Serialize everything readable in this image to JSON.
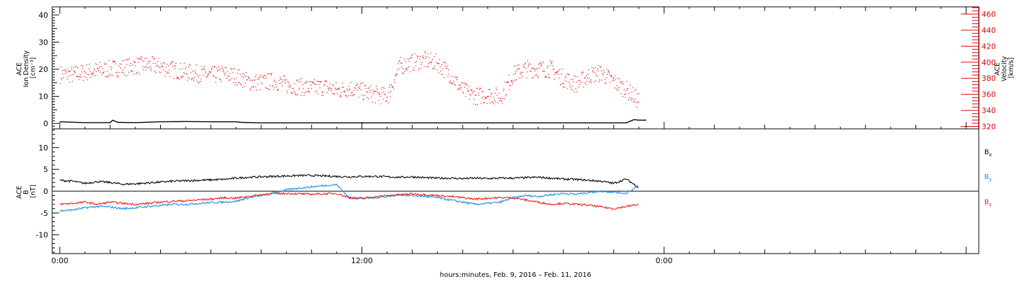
{
  "chart_data": [
    {
      "type": "scatter",
      "panel": "top",
      "ylabel_lines": [
        "ACE",
        "Ion Density",
        "[cm⁻³]"
      ],
      "ylim": [
        -2,
        43
      ],
      "yticks": [
        0,
        10,
        20,
        30,
        40
      ],
      "y2label_lines": [
        "ACE",
        "Velocity",
        "[km/s]"
      ],
      "y2lim": [
        317,
        469
      ],
      "y2ticks": [
        320,
        340,
        360,
        380,
        400,
        420,
        440,
        460
      ],
      "xlim_hours": [
        -0.3,
        36.5
      ],
      "series": [
        {
          "axis": "left",
          "color": "#000000",
          "x": [
            0,
            1,
            2,
            2.1,
            2.3,
            3,
            4,
            5,
            6,
            7,
            7.2,
            8,
            9,
            10,
            11,
            12,
            13,
            14,
            15,
            16,
            17,
            18,
            19,
            20,
            21,
            22,
            22.5,
            22.8,
            23,
            23.3
          ],
          "values": [
            0.6,
            0.3,
            0.3,
            1.2,
            0.4,
            0.3,
            0.6,
            0.7,
            0.6,
            0.6,
            0.4,
            0.2,
            0.2,
            0.2,
            0.2,
            0.2,
            0.2,
            0.2,
            0.2,
            0.2,
            0.2,
            0.2,
            0.2,
            0.2,
            0.2,
            0.2,
            0.2,
            1.4,
            1.2,
            1.2
          ]
        },
        {
          "axis": "right",
          "color": "#e00000",
          "x": [
            0,
            0.5,
            1,
            1.5,
            2,
            2.5,
            3,
            3.5,
            4,
            4.5,
            5,
            5.5,
            6,
            6.5,
            7,
            7.5,
            8,
            8.5,
            9,
            9.5,
            10,
            10.5,
            11,
            11.5,
            12,
            12.5,
            13,
            13.5,
            14,
            14.5,
            15,
            15.5,
            16,
            16.5,
            17,
            17.5,
            18,
            18.5,
            19,
            19.5,
            20,
            20.5,
            21,
            21.5,
            22,
            22.5,
            23
          ],
          "values": [
            385,
            385,
            388,
            390,
            392,
            394,
            396,
            397,
            395,
            391,
            388,
            386,
            384,
            386,
            383,
            376,
            375,
            377,
            372,
            370,
            368,
            370,
            365,
            368,
            364,
            360,
            358,
            396,
            400,
            403,
            399,
            385,
            365,
            358,
            360,
            357,
            385,
            392,
            392,
            392,
            380,
            373,
            384,
            387,
            376,
            366,
            352
          ]
        }
      ]
    },
    {
      "type": "line",
      "panel": "bottom",
      "ylabel_lines": [
        "ACE",
        "B",
        "[nT]"
      ],
      "ylim": [
        -14.3,
        14.3
      ],
      "yticks": [
        -10,
        -5,
        0,
        5,
        10
      ],
      "xlim_hours": [
        -0.3,
        36.5
      ],
      "series": [
        {
          "name": "B",
          "sub": "x",
          "color": "#000000",
          "x": [
            0,
            0.5,
            1,
            1.5,
            2,
            2.5,
            3,
            3.5,
            4,
            4.5,
            5,
            5.5,
            6,
            6.5,
            7,
            7.5,
            8,
            8.5,
            9,
            9.5,
            10,
            10.5,
            11,
            11.5,
            12,
            12.5,
            13,
            13.5,
            14,
            14.5,
            15,
            15.5,
            16,
            16.5,
            17,
            17.5,
            18,
            18.5,
            19,
            19.5,
            20,
            20.5,
            21,
            21.5,
            22,
            22.5,
            23
          ],
          "values": [
            2.5,
            2.3,
            1.8,
            2.2,
            2.0,
            1.6,
            1.7,
            1.9,
            2.1,
            2.3,
            2.4,
            2.5,
            2.6,
            2.7,
            3.0,
            3.2,
            3.3,
            3.4,
            3.5,
            3.6,
            3.6,
            3.5,
            3.4,
            3.3,
            3.4,
            3.4,
            3.3,
            3.2,
            3.3,
            3.1,
            3.0,
            3.0,
            2.9,
            3.0,
            2.9,
            3.0,
            3.0,
            3.1,
            3.2,
            3.0,
            2.8,
            2.7,
            2.5,
            2.3,
            1.8,
            2.8,
            0.8
          ]
        },
        {
          "name": "B",
          "sub": "y",
          "color": "#1e90e0",
          "x": [
            0,
            0.5,
            1,
            1.5,
            2,
            2.5,
            3,
            3.5,
            4,
            4.5,
            5,
            5.5,
            6,
            6.5,
            7,
            7.5,
            8,
            8.5,
            9,
            9.5,
            10,
            10.5,
            11,
            11.5,
            12,
            12.5,
            13,
            13.5,
            14,
            14.5,
            15,
            15.5,
            16,
            16.5,
            17,
            17.5,
            18,
            18.5,
            19,
            19.5,
            20,
            20.5,
            21,
            21.5,
            22,
            22.5,
            23
          ],
          "values": [
            -4.5,
            -4.3,
            -3.8,
            -3.5,
            -3.6,
            -4.0,
            -3.8,
            -3.5,
            -3.3,
            -3.0,
            -3.0,
            -2.8,
            -2.6,
            -2.5,
            -2.3,
            -1.5,
            -1.0,
            -0.3,
            0.3,
            0.7,
            1.0,
            1.3,
            1.5,
            -1.5,
            -1.7,
            -1.5,
            -1.2,
            -0.8,
            -1.0,
            -1.2,
            -1.5,
            -2.0,
            -2.5,
            -3.0,
            -2.8,
            -2.5,
            -1.5,
            -1.0,
            -1.2,
            -0.8,
            -0.5,
            -0.7,
            -0.3,
            0.0,
            -0.2,
            -0.5,
            1.3
          ]
        },
        {
          "name": "B",
          "sub": "z",
          "color": "#e82020",
          "x": [
            0,
            0.5,
            1,
            1.5,
            2,
            2.5,
            3,
            3.5,
            4,
            4.5,
            5,
            5.5,
            6,
            6.5,
            7,
            7.5,
            8,
            8.5,
            9,
            9.5,
            10,
            10.5,
            11,
            11.5,
            12,
            12.5,
            13,
            13.5,
            14,
            14.5,
            15,
            15.5,
            16,
            16.5,
            17,
            17.5,
            18,
            18.5,
            19,
            19.5,
            20,
            20.5,
            21,
            21.5,
            22,
            22.5,
            23
          ],
          "values": [
            -3.0,
            -2.8,
            -2.5,
            -3.0,
            -2.5,
            -2.8,
            -3.0,
            -2.8,
            -2.5,
            -2.3,
            -2.2,
            -2.0,
            -1.8,
            -1.5,
            -1.6,
            -1.2,
            -0.8,
            -0.6,
            -0.5,
            -0.6,
            -0.7,
            -0.6,
            -0.5,
            -1.5,
            -1.6,
            -1.3,
            -1.0,
            -0.8,
            -0.6,
            -0.8,
            -1.0,
            -1.2,
            -1.5,
            -1.8,
            -1.6,
            -1.5,
            -1.5,
            -2.0,
            -2.5,
            -3.0,
            -2.8,
            -3.0,
            -3.2,
            -3.6,
            -4.0,
            -3.5,
            -3.0
          ]
        }
      ]
    }
  ],
  "xaxis": {
    "tick_labels": [
      {
        "hour": 0,
        "label": "0:00"
      },
      {
        "hour": 12,
        "label": "12:00"
      },
      {
        "hour": 24,
        "label": "0:00"
      }
    ],
    "title": "hours:minutes, Feb. 9, 2016 – Feb. 11, 2016"
  }
}
